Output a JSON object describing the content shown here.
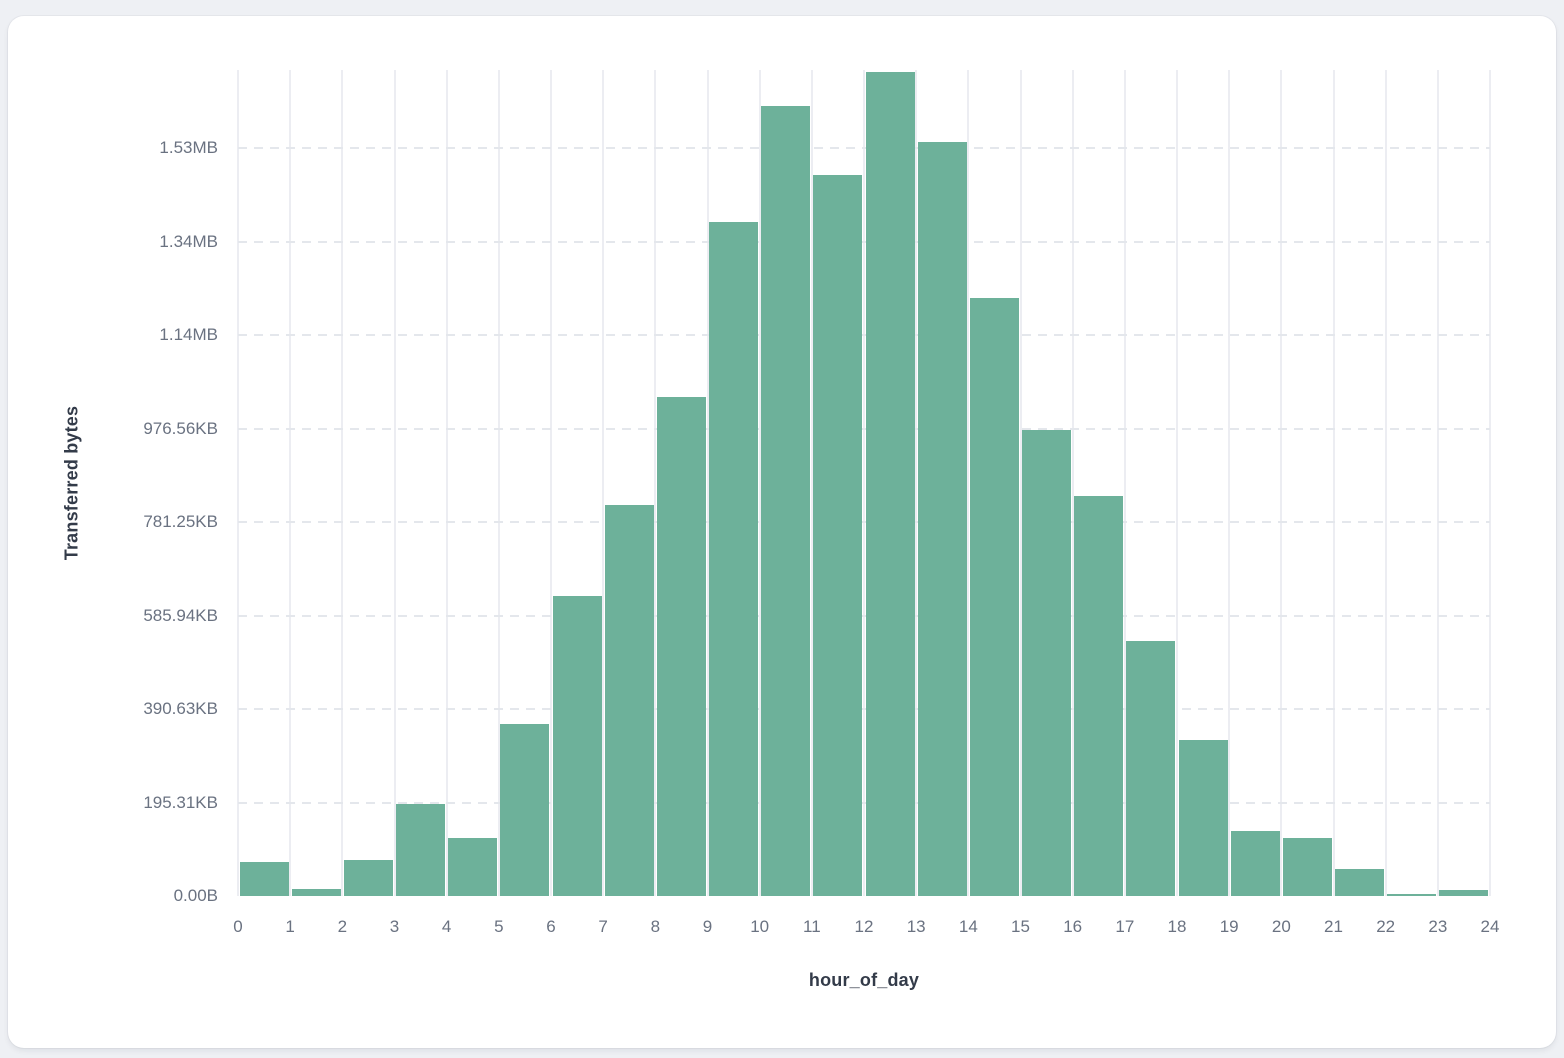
{
  "theme": {
    "page_background": "#eef0f4",
    "card_background": "#ffffff",
    "bar_color": "#6db19a",
    "vertical_grid_color": "#ecedf2",
    "horizontal_grid_color": "#e4e7ec",
    "tick_label_color": "#6a7281",
    "axis_title_color": "#333b49"
  },
  "chart_data": {
    "type": "bar",
    "subtype": "histogram",
    "title": "",
    "xlabel": "hour_of_day",
    "ylabel": "Transferred bytes",
    "legend_position": "none",
    "grid": {
      "vertical": "solid",
      "horizontal": "dashed"
    },
    "categories": [
      0,
      1,
      2,
      3,
      4,
      5,
      6,
      7,
      8,
      9,
      10,
      11,
      12,
      13,
      14,
      15,
      16,
      17,
      18,
      19,
      20,
      21,
      22,
      23
    ],
    "values_bytes": [
      72000,
      14000,
      78000,
      196000,
      125000,
      369000,
      642000,
      836000,
      1068000,
      1442000,
      1690000,
      1544000,
      1764000,
      1614000,
      1280000,
      997000,
      856000,
      546000,
      335000,
      140000,
      125000,
      57000,
      4000,
      13000
    ],
    "x_axis": {
      "range": [
        0,
        24
      ],
      "tick_labels": [
        "0",
        "1",
        "2",
        "3",
        "4",
        "5",
        "6",
        "7",
        "8",
        "9",
        "10",
        "11",
        "12",
        "13",
        "14",
        "15",
        "16",
        "17",
        "18",
        "19",
        "20",
        "21",
        "22",
        "23",
        "24"
      ]
    },
    "y_axis": {
      "max_bytes": 1768000,
      "tick_values_bytes": [
        0,
        200000,
        400000,
        600000,
        800000,
        1000000,
        1200000,
        1400000,
        1600000
      ],
      "tick_labels": [
        "0.00B",
        "195.31KB",
        "390.63KB",
        "585.94KB",
        "781.25KB",
        "976.56KB",
        "1.14MB",
        "1.34MB",
        "1.53MB"
      ]
    }
  }
}
